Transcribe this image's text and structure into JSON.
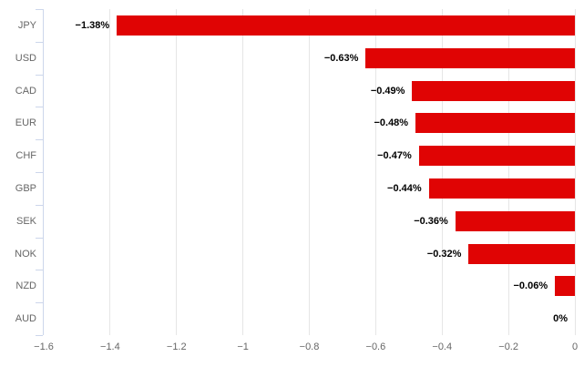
{
  "chart_data": {
    "type": "bar",
    "orientation": "horizontal",
    "title": "",
    "xlabel": "",
    "ylabel": "",
    "categories": [
      "JPY",
      "USD",
      "CAD",
      "EUR",
      "CHF",
      "GBP",
      "SEK",
      "NOK",
      "NZD",
      "AUD"
    ],
    "values": [
      -1.38,
      -0.63,
      -0.49,
      -0.48,
      -0.47,
      -0.44,
      -0.36,
      -0.32,
      -0.06,
      0
    ],
    "value_labels": [
      "−1.38%",
      "−0.63%",
      "−0.49%",
      "−0.48%",
      "−0.47%",
      "−0.44%",
      "−0.36%",
      "−0.32%",
      "−0.06%",
      "0%"
    ],
    "xlim": [
      -1.6,
      0
    ],
    "x_ticks": [
      -1.6,
      -1.4,
      -1.2,
      -1,
      -0.8,
      -0.6,
      -0.4,
      -0.2,
      0
    ],
    "x_tick_labels": [
      "−1.6",
      "−1.4",
      "−1.2",
      "−1",
      "−0.8",
      "−0.6",
      "−0.4",
      "−0.2",
      "0"
    ],
    "grid": true,
    "legend": "none",
    "colors": {
      "bar": "#e00404",
      "gridline": "#e6e6e6",
      "axis_line": "#ccd6eb",
      "axis_label": "#666666",
      "value_label": "#000000",
      "background": "#ffffff"
    }
  }
}
